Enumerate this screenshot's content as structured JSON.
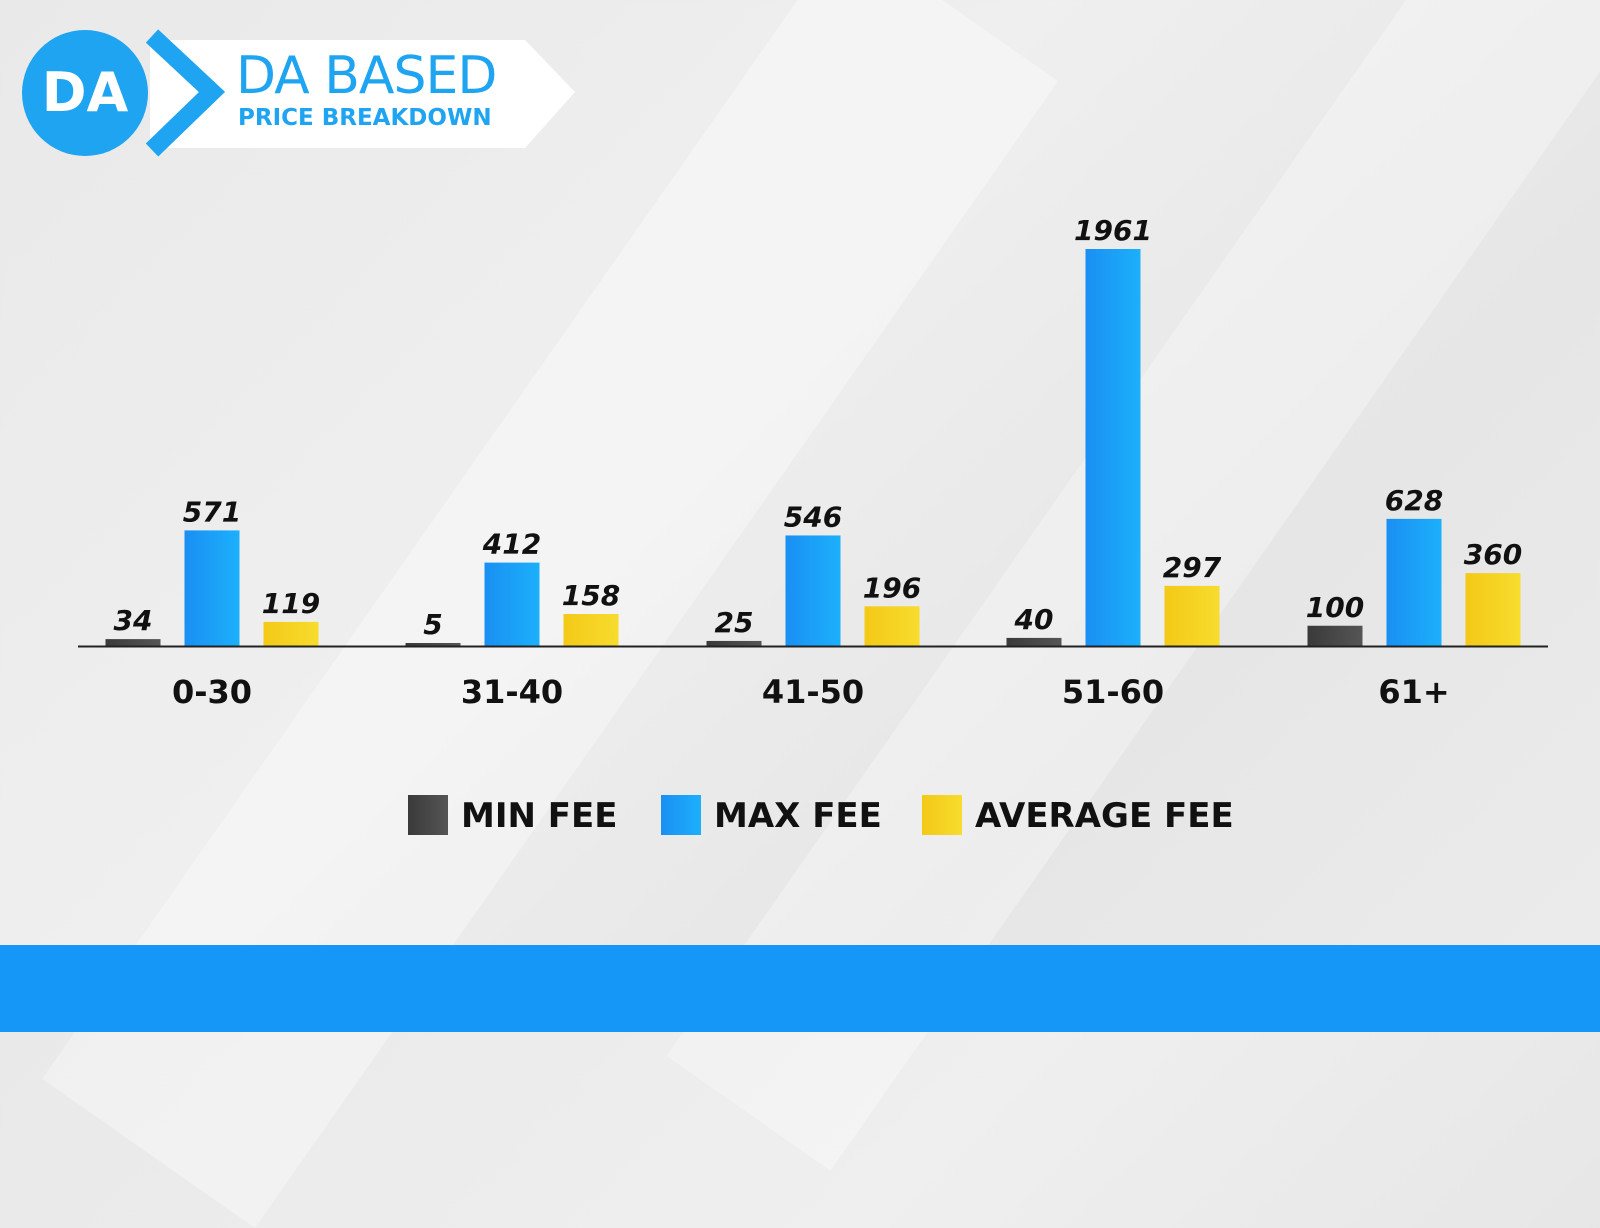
{
  "header": {
    "logo_text": "DA",
    "title": "DA BASED",
    "subtitle": "PRICE BREAKDOWN"
  },
  "colors": {
    "brand_blue": "#1597f7",
    "min_fee": "#444444",
    "max_fee": "#1a9ff5",
    "average_fee": "#f5cf1c"
  },
  "chart_data": {
    "type": "bar",
    "title": "",
    "xlabel": "",
    "ylabel": "",
    "ylim": [
      0,
      1961
    ],
    "grid": false,
    "legend_position": "bottom",
    "categories": [
      "0-30",
      "31-40",
      "41-50",
      "51-60",
      "61+"
    ],
    "series": [
      {
        "name": "MIN FEE",
        "values": [
          34,
          5,
          25,
          40,
          100
        ],
        "color": "#444444"
      },
      {
        "name": "MAX FEE",
        "values": [
          571,
          412,
          546,
          1961,
          628
        ],
        "color": "#1a9ff5"
      },
      {
        "name": "AVERAGE FEE",
        "values": [
          119,
          158,
          196,
          297,
          360
        ],
        "color": "#f5cf1c"
      }
    ]
  }
}
